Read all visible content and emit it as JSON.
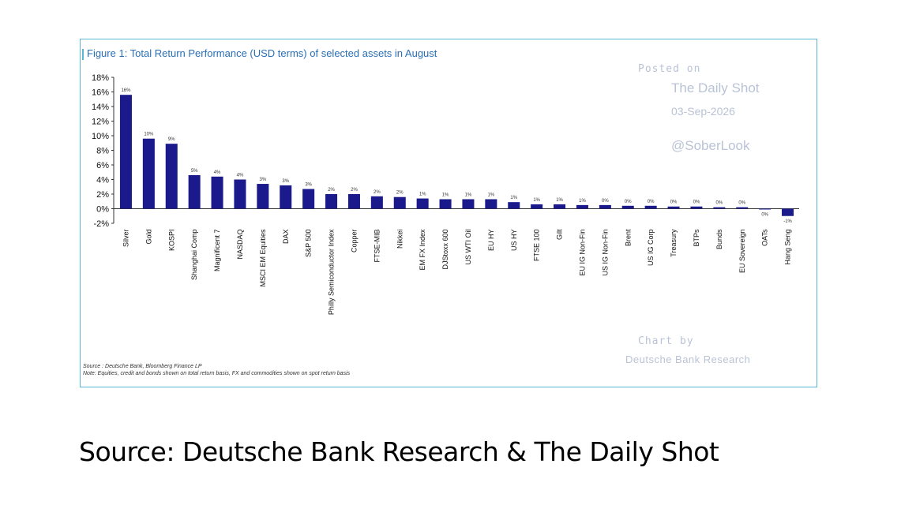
{
  "figure": {
    "title": "Figure 1: Total Return Performance (USD terms) of selected assets in August",
    "source": "Source : Deutsche Bank, Bloomberg Finance LP",
    "note": "Note: Equities, credit and bonds shown on total return basis, FX and commodities shown on spot return basis"
  },
  "watermark": {
    "posted_on": "Posted on",
    "site": "The Daily Shot",
    "date": "03-Sep-2026",
    "handle": "@SoberLook",
    "chart_by": "Chart by",
    "chart_by_name": "Deutsche Bank Research"
  },
  "caption": "Source: Deutsche Bank Research & The Daily Shot",
  "colors": {
    "bar": "#1a1a8c",
    "frame": "#5bb8d4",
    "title": "#2a6fb5",
    "watermark": "#b9c3d6"
  },
  "chart_data": {
    "type": "bar",
    "title": "Figure 1: Total Return Performance (USD terms) of selected assets in August",
    "xlabel": "",
    "ylabel": "",
    "ylim": [
      -2,
      18
    ],
    "yticks": [
      -2,
      0,
      2,
      4,
      6,
      8,
      10,
      12,
      14,
      16,
      18
    ],
    "ytick_labels": [
      "-2%",
      "0%",
      "2%",
      "4%",
      "6%",
      "8%",
      "10%",
      "12%",
      "14%",
      "16%",
      "18%"
    ],
    "grid": false,
    "legend": "none",
    "categories": [
      "Silver",
      "Gold",
      "KOSPI",
      "Shanghai Comp",
      "Magnificent 7",
      "NASDAQ",
      "MSCI EM Equities",
      "DAX",
      "S&P 500",
      "Philly Semiconductor Index",
      "Copper",
      "FTSE-MIB",
      "Nikkei",
      "EM FX Index",
      "DJStoxx 600",
      "US WTI Oil",
      "EU HY",
      "US HY",
      "FTSE 100",
      "Gilt",
      "EU IG Non-Fin",
      "US IG Non-Fin",
      "Brent",
      "US IG Corp",
      "Treasury",
      "BTPs",
      "Bunds",
      "EU Sovereign",
      "OATs",
      "Hang Seng"
    ],
    "values": [
      15.6,
      9.6,
      8.9,
      4.6,
      4.4,
      4.0,
      3.4,
      3.2,
      2.7,
      2.0,
      2.0,
      1.7,
      1.6,
      1.4,
      1.3,
      1.3,
      1.3,
      0.9,
      0.6,
      0.6,
      0.5,
      0.5,
      0.4,
      0.4,
      0.3,
      0.3,
      0.2,
      0.2,
      -0.1,
      -1.0
    ],
    "data_labels": [
      "16%",
      "10%",
      "9%",
      "5%",
      "4%",
      "4%",
      "3%",
      "3%",
      "3%",
      "2%",
      "2%",
      "2%",
      "2%",
      "1%",
      "1%",
      "1%",
      "1%",
      "1%",
      "1%",
      "1%",
      "1%",
      "0%",
      "0%",
      "0%",
      "0%",
      "0%",
      "0%",
      "0%",
      "0%",
      "-1%"
    ]
  }
}
